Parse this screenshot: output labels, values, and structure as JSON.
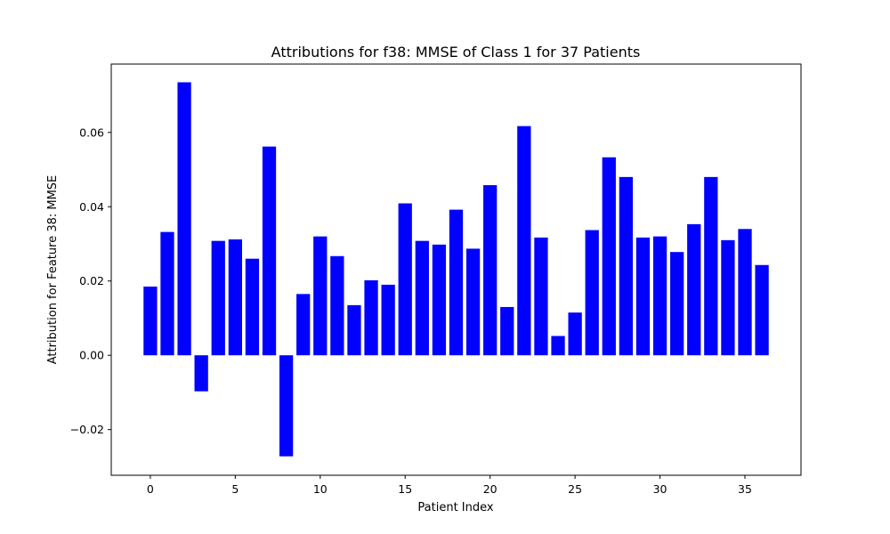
{
  "chart_data": {
    "type": "bar",
    "title": "Attributions for f38: MMSE of Class 1 for 37 Patients",
    "xlabel": "Patient Index",
    "ylabel": "Attribution for Feature 38: MMSE",
    "bar_color": "#0000ff",
    "x": [
      0,
      1,
      2,
      3,
      4,
      5,
      6,
      7,
      8,
      9,
      10,
      11,
      12,
      13,
      14,
      15,
      16,
      17,
      18,
      19,
      20,
      21,
      22,
      23,
      24,
      25,
      26,
      27,
      28,
      29,
      30,
      31,
      32,
      33,
      34,
      35,
      36
    ],
    "values": [
      0.0185,
      0.0332,
      0.0735,
      -0.0097,
      0.0308,
      0.0312,
      0.026,
      0.0562,
      -0.0272,
      0.0165,
      0.032,
      0.0267,
      0.0135,
      0.0202,
      0.019,
      0.0409,
      0.0308,
      0.0298,
      0.0392,
      0.0287,
      0.0458,
      0.013,
      0.0617,
      0.0317,
      0.0052,
      0.0115,
      0.0337,
      0.0533,
      0.048,
      0.0317,
      0.032,
      0.0278,
      0.0353,
      0.048,
      0.031,
      0.034,
      0.0243
    ],
    "xlim": [
      -2.3,
      38.3
    ],
    "ylim": [
      -0.0323,
      0.0784
    ],
    "xticks": [
      0,
      5,
      10,
      15,
      20,
      25,
      30,
      35
    ],
    "xtick_labels": [
      "0",
      "5",
      "10",
      "15",
      "20",
      "25",
      "30",
      "35"
    ],
    "yticks": [
      -0.02,
      0.0,
      0.02,
      0.04,
      0.06
    ],
    "ytick_labels": [
      "−0.02",
      "0.00",
      "0.02",
      "0.04",
      "0.06"
    ],
    "grid": false,
    "legend": false
  }
}
